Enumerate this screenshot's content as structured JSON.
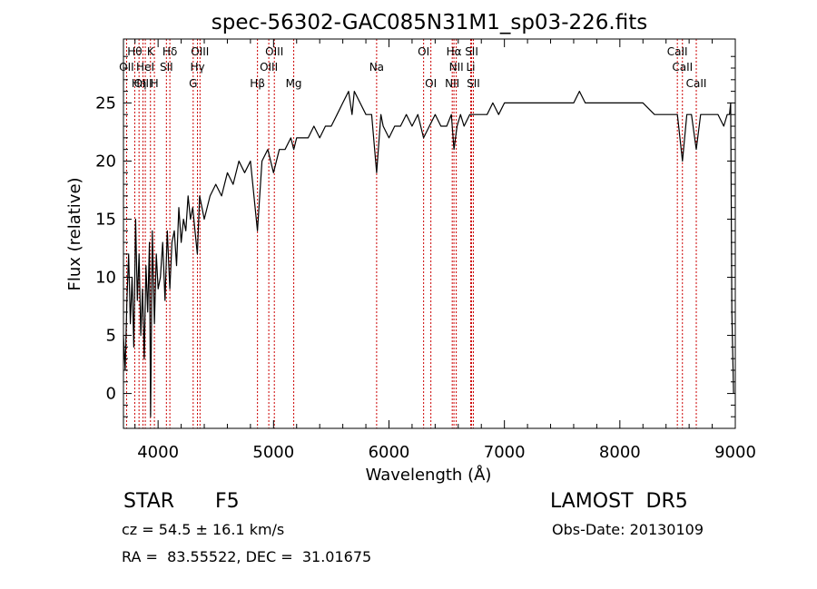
{
  "chart_data": {
    "type": "line",
    "title": "spec-56302-GAC085N31M1_sp03-226.fits",
    "xlabel": "Wavelength (Å)",
    "ylabel": "Flux (relative)",
    "xlim": [
      3700,
      9000
    ],
    "ylim": [
      -3,
      30.5
    ],
    "x_ticks": [
      4000,
      5000,
      6000,
      7000,
      8000,
      9000
    ],
    "y_ticks": [
      0,
      5,
      10,
      15,
      20,
      25
    ],
    "x_tick_labels": [
      "4000",
      "5000",
      "6000",
      "7000",
      "8000",
      "9000"
    ],
    "y_tick_labels": [
      "0",
      "5",
      "10",
      "15",
      "20",
      "25"
    ],
    "grid": false,
    "line_color": "#000000",
    "marker_line_color": "#cc0000",
    "series": [
      {
        "x": [
          3700,
          3715,
          3730,
          3745,
          3760,
          3775,
          3790,
          3805,
          3820,
          3835,
          3850,
          3865,
          3880,
          3895,
          3910,
          3925,
          3935,
          3950,
          3968,
          3985,
          4000,
          4020,
          4040,
          4060,
          4080,
          4102,
          4120,
          4140,
          4160,
          4180,
          4200,
          4220,
          4240,
          4260,
          4280,
          4300,
          4320,
          4340,
          4360,
          4380,
          4400,
          4450,
          4500,
          4550,
          4600,
          4650,
          4700,
          4750,
          4800,
          4861,
          4900,
          4950,
          5000,
          5050,
          5100,
          5150,
          5175,
          5200,
          5250,
          5300,
          5350,
          5400,
          5450,
          5500,
          5550,
          5600,
          5650,
          5680,
          5700,
          5750,
          5800,
          5850,
          5893,
          5930,
          5950,
          6000,
          6050,
          6100,
          6150,
          6200,
          6250,
          6300,
          6350,
          6400,
          6450,
          6500,
          6540,
          6563,
          6590,
          6620,
          6650,
          6700,
          6750,
          6800,
          6850,
          6900,
          6950,
          7000,
          7100,
          7200,
          7300,
          7400,
          7500,
          7600,
          7650,
          7700,
          7800,
          7900,
          8000,
          8100,
          8200,
          8300,
          8400,
          8450,
          8498,
          8542,
          8580,
          8620,
          8662,
          8700,
          8750,
          8800,
          8850,
          8900,
          8930,
          8950,
          8960,
          8970,
          8985
        ],
        "y": [
          5,
          2,
          8,
          12,
          6,
          10,
          4,
          15,
          8,
          12,
          5,
          9,
          3,
          11,
          7,
          13,
          -2,
          14,
          6,
          12,
          9,
          10,
          13,
          8,
          14,
          9,
          13,
          14,
          11,
          16,
          13,
          15,
          14,
          17,
          15,
          16,
          14,
          12,
          17,
          16,
          15,
          17,
          18,
          17,
          19,
          18,
          20,
          19,
          20,
          14,
          20,
          21,
          19,
          21,
          21,
          22,
          21,
          22,
          22,
          22,
          23,
          22,
          23,
          23,
          24,
          25,
          26,
          24,
          26,
          25,
          24,
          24,
          19,
          24,
          23,
          22,
          23,
          23,
          24,
          23,
          24,
          22,
          23,
          24,
          23,
          23,
          24,
          21,
          23,
          24,
          23,
          24,
          24,
          24,
          24,
          25,
          24,
          25,
          25,
          25,
          25,
          25,
          25,
          25,
          26,
          25,
          25,
          25,
          25,
          25,
          25,
          24,
          24,
          24,
          24,
          20,
          24,
          24,
          21,
          24,
          24,
          24,
          24,
          23,
          24,
          24,
          25,
          7,
          0
        ]
      }
    ],
    "line_markers": [
      {
        "name": "Hθ",
        "wavelength": 3798,
        "row": 1
      },
      {
        "name": "K",
        "wavelength": 3934,
        "row": 1
      },
      {
        "name": "Hδ",
        "wavelength": 4102,
        "row": 1
      },
      {
        "name": "OIII",
        "wavelength": 4363,
        "row": 1
      },
      {
        "name": "OIII",
        "wavelength": 5007,
        "row": 1
      },
      {
        "name": "OI",
        "wavelength": 6300,
        "row": 1
      },
      {
        "name": "Hα",
        "wavelength": 6563,
        "row": 1
      },
      {
        "name": "SII",
        "wavelength": 6716,
        "row": 1
      },
      {
        "name": "CaII",
        "wavelength": 8498,
        "row": 1
      },
      {
        "name": "OII",
        "wavelength": 3727,
        "row": 2
      },
      {
        "name": "HeI",
        "wavelength": 3889,
        "row": 2
      },
      {
        "name": "SII",
        "wavelength": 4072,
        "row": 2
      },
      {
        "name": "Hγ",
        "wavelength": 4341,
        "row": 2
      },
      {
        "name": "OIII",
        "wavelength": 4959,
        "row": 2
      },
      {
        "name": "Na",
        "wavelength": 5893,
        "row": 2
      },
      {
        "name": "NII",
        "wavelength": 6583,
        "row": 2
      },
      {
        "name": "Li",
        "wavelength": 6708,
        "row": 2
      },
      {
        "name": "CaII",
        "wavelength": 8542,
        "row": 2
      },
      {
        "name": "OIII",
        "wavelength": 3869,
        "row": 3
      },
      {
        "name": "Hη",
        "wavelength": 3835,
        "row": 3
      },
      {
        "name": "H",
        "wavelength": 3968,
        "row": 3
      },
      {
        "name": "G",
        "wavelength": 4304,
        "row": 3
      },
      {
        "name": "Hβ",
        "wavelength": 4861,
        "row": 3
      },
      {
        "name": "Mg",
        "wavelength": 5175,
        "row": 3
      },
      {
        "name": "OI",
        "wavelength": 6363,
        "row": 3
      },
      {
        "name": "NII",
        "wavelength": 6548,
        "row": 3
      },
      {
        "name": "SII",
        "wavelength": 6731,
        "row": 3
      },
      {
        "name": "CaII",
        "wavelength": 8662,
        "row": 3
      }
    ]
  },
  "info": {
    "class": "STAR",
    "subclass": "F5",
    "survey": "LAMOST  DR5",
    "redshift": "cz = 54.5 ± 16.1 km/s",
    "obs_date": "Obs-Date: 20130109",
    "coords": "RA =  83.55522, DEC =  31.01675"
  }
}
